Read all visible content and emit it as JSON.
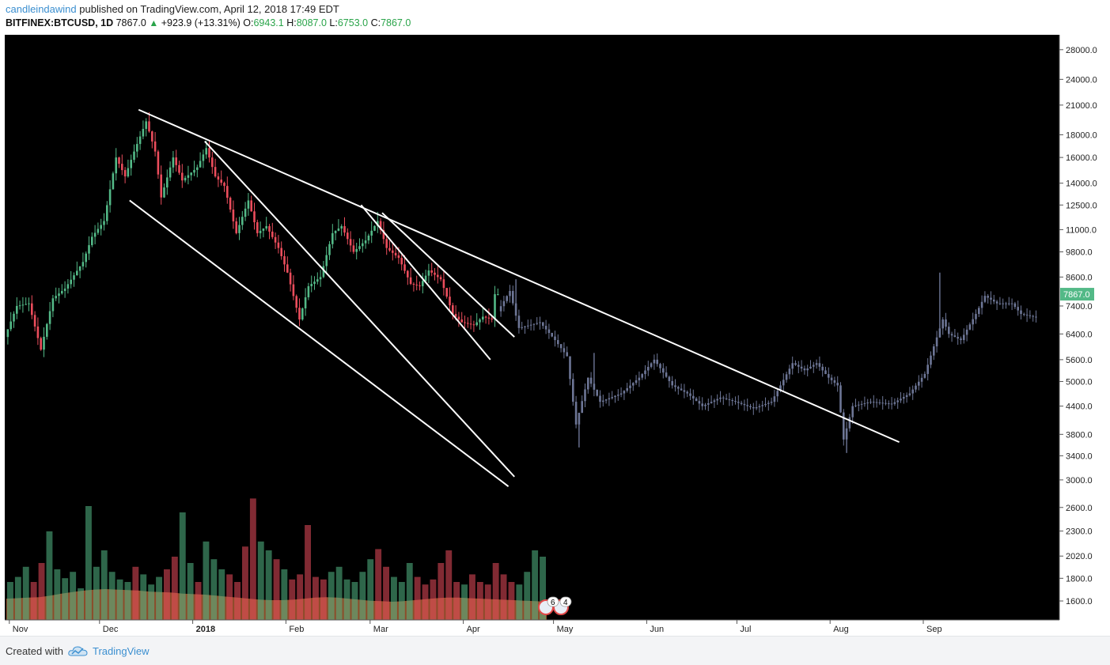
{
  "header": {
    "author": "candleindawind",
    "published": "published on TradingView.com, April 12, 2018 17:49 EDT",
    "symbol": "BITFINEX:BTCUSD, 1D",
    "last": "7867.0",
    "change": "+923.9 (+13.31%)",
    "o_label": "O:",
    "o_value": "6943.1",
    "h_label": "H:",
    "h_value": "8087.0",
    "l_label": "L:",
    "l_value": "6753.0",
    "c_label": "C:",
    "c_value": "7867.0"
  },
  "footer": {
    "created": "Created with",
    "brand": "TradingView"
  },
  "colors": {
    "background": "#000000",
    "up": "#53b987",
    "down": "#eb4d5c",
    "projection": "#6d7696",
    "trendline": "#ffffff",
    "price_badge": "#53b987",
    "volume_ma": "#ff8a4c"
  },
  "chart_data": {
    "type": "candlestick",
    "symbol": "BITFINEX:BTCUSD",
    "interval": "1D",
    "y_scale": "log",
    "ylim": [
      1450,
      30000
    ],
    "price_ticks": [
      "28000.0",
      "24000.0",
      "21000.0",
      "18000.0",
      "16000.0",
      "14000.0",
      "12500.0",
      "11000.0",
      "9800.0",
      "8600.0",
      "7400.0",
      "6400.0",
      "5600.0",
      "5000.0",
      "4400.0",
      "3800.0",
      "3400.0",
      "3000.0",
      "2600.0",
      "2300.0",
      "2020.0",
      "1800.0",
      "1600.0"
    ],
    "time_ticks": [
      "Nov",
      "Dec",
      "2018",
      "Feb",
      "Mar",
      "Apr",
      "May",
      "Jun",
      "Jul",
      "Aug",
      "Sep"
    ],
    "last_price": "7867.0",
    "price_path": [
      [
        "2017-10-31",
        6300
      ],
      [
        "2017-11-04",
        7400
      ],
      [
        "2017-11-08",
        7500
      ],
      [
        "2017-11-12",
        5900
      ],
      [
        "2017-11-16",
        7700
      ],
      [
        "2017-11-20",
        8100
      ],
      [
        "2017-11-26",
        9300
      ],
      [
        "2017-11-29",
        10600
      ],
      [
        "2017-12-03",
        11500
      ],
      [
        "2017-12-07",
        16000
      ],
      [
        "2017-12-10",
        14500
      ],
      [
        "2017-12-13",
        16500
      ],
      [
        "2017-12-17",
        19300
      ],
      [
        "2017-12-20",
        16500
      ],
      [
        "2017-12-22",
        13000
      ],
      [
        "2017-12-26",
        16000
      ],
      [
        "2017-12-29",
        14200
      ],
      [
        "2018-01-03",
        15200
      ],
      [
        "2018-01-06",
        16800
      ],
      [
        "2018-01-09",
        14500
      ],
      [
        "2018-01-12",
        13800
      ],
      [
        "2018-01-16",
        10800
      ],
      [
        "2018-01-20",
        12800
      ],
      [
        "2018-01-23",
        10800
      ],
      [
        "2018-01-26",
        11200
      ],
      [
        "2018-01-30",
        10000
      ],
      [
        "2018-02-02",
        8800
      ],
      [
        "2018-02-06",
        6900
      ],
      [
        "2018-02-09",
        8200
      ],
      [
        "2018-02-13",
        8600
      ],
      [
        "2018-02-17",
        10800
      ],
      [
        "2018-02-20",
        11200
      ],
      [
        "2018-02-24",
        9800
      ],
      [
        "2018-02-28",
        10400
      ],
      [
        "2018-03-04",
        11500
      ],
      [
        "2018-03-07",
        10000
      ],
      [
        "2018-03-11",
        9500
      ],
      [
        "2018-03-15",
        8300
      ],
      [
        "2018-03-18",
        8200
      ],
      [
        "2018-03-21",
        8900
      ],
      [
        "2018-03-25",
        8500
      ],
      [
        "2018-03-29",
        7100
      ],
      [
        "2018-04-01",
        6800
      ],
      [
        "2018-04-05",
        6700
      ],
      [
        "2018-04-08",
        7000
      ],
      [
        "2018-04-11",
        6900
      ],
      [
        "2018-04-12",
        7867
      ]
    ],
    "projection_path": [
      [
        "2018-04-13",
        7200
      ],
      [
        "2018-04-17",
        8000
      ],
      [
        "2018-04-20",
        6600
      ],
      [
        "2018-04-27",
        6800
      ],
      [
        "2018-05-02",
        6200
      ],
      [
        "2018-05-06",
        5700
      ],
      [
        "2018-05-09",
        4000
      ],
      [
        "2018-05-13",
        5100
      ],
      [
        "2018-05-17",
        4500
      ],
      [
        "2018-05-24",
        4700
      ],
      [
        "2018-05-30",
        5100
      ],
      [
        "2018-06-04",
        5600
      ],
      [
        "2018-06-10",
        4900
      ],
      [
        "2018-06-15",
        4700
      ],
      [
        "2018-06-20",
        4400
      ],
      [
        "2018-06-26",
        4600
      ],
      [
        "2018-07-01",
        4500
      ],
      [
        "2018-07-07",
        4350
      ],
      [
        "2018-07-13",
        4500
      ],
      [
        "2018-07-16",
        4900
      ],
      [
        "2018-07-20",
        5500
      ],
      [
        "2018-07-24",
        5300
      ],
      [
        "2018-07-28",
        5500
      ],
      [
        "2018-08-01",
        5100
      ],
      [
        "2018-08-04",
        4900
      ],
      [
        "2018-08-06",
        3700
      ],
      [
        "2018-08-09",
        4400
      ],
      [
        "2018-08-15",
        4500
      ],
      [
        "2018-08-22",
        4450
      ],
      [
        "2018-08-28",
        4700
      ],
      [
        "2018-09-02",
        5200
      ],
      [
        "2018-09-05",
        6000
      ],
      [
        "2018-09-08",
        6900
      ],
      [
        "2018-09-10",
        6400
      ],
      [
        "2018-09-14",
        6200
      ],
      [
        "2018-09-19",
        7100
      ],
      [
        "2018-09-22",
        7800
      ],
      [
        "2018-09-26",
        7500
      ],
      [
        "2018-10-01",
        7500
      ],
      [
        "2018-10-04",
        7100
      ],
      [
        "2018-10-08",
        7000
      ]
    ],
    "projection_spikes": [
      [
        "2018-04-18",
        8500
      ],
      [
        "2018-05-09",
        3550
      ],
      [
        "2018-05-14",
        5800
      ],
      [
        "2018-08-06",
        3450
      ],
      [
        "2018-09-06",
        8800
      ]
    ],
    "trendlines": [
      {
        "from": [
          "2017-12-14",
          20500
        ],
        "to": [
          "2018-08-24",
          3650
        ]
      },
      {
        "from": [
          "2018-01-05",
          17400
        ],
        "to": [
          "2018-04-18",
          3050
        ]
      },
      {
        "from": [
          "2017-12-11",
          12800
        ],
        "to": [
          "2018-04-16",
          2900
        ]
      },
      {
        "from": [
          "2018-02-26",
          12500
        ],
        "to": [
          "2018-04-10",
          5600
        ]
      },
      {
        "from": [
          "2018-03-05",
          12000
        ],
        "to": [
          "2018-04-18",
          6300
        ]
      }
    ],
    "volume": {
      "shown_as": "bars with moving-average area",
      "relative": [
        0.3,
        0.34,
        0.42,
        0.3,
        0.45,
        0.7,
        0.4,
        0.33,
        0.38,
        0.25,
        0.9,
        0.42,
        0.55,
        0.38,
        0.32,
        0.3,
        0.42,
        0.36,
        0.28,
        0.34,
        0.4,
        0.5,
        0.85,
        0.45,
        0.3,
        0.62,
        0.48,
        0.4,
        0.36,
        0.3,
        0.58,
        0.96,
        0.62,
        0.55,
        0.48,
        0.4,
        0.32,
        0.36,
        0.75,
        0.34,
        0.32,
        0.38,
        0.42,
        0.32,
        0.3,
        0.38,
        0.48,
        0.56,
        0.42,
        0.34,
        0.3,
        0.45,
        0.34,
        0.28,
        0.32,
        0.45,
        0.55,
        0.3,
        0.28,
        0.36,
        0.3,
        0.28,
        0.45,
        0.36,
        0.3,
        0.28,
        0.38,
        0.55,
        0.5
      ],
      "ma_relative": [
        0.42,
        0.43,
        0.44,
        0.45,
        0.48,
        0.52,
        0.55,
        0.58,
        0.6,
        0.61,
        0.6,
        0.59,
        0.58,
        0.56,
        0.55,
        0.54,
        0.52,
        0.51,
        0.5,
        0.48,
        0.46,
        0.44,
        0.42,
        0.4,
        0.39,
        0.39,
        0.4,
        0.42,
        0.44,
        0.45,
        0.44,
        0.42,
        0.4,
        0.38,
        0.37,
        0.36,
        0.37,
        0.39,
        0.41,
        0.43,
        0.44,
        0.44,
        0.43,
        0.42,
        0.41,
        0.4,
        0.39,
        0.38,
        0.37,
        0.36
      ]
    }
  },
  "badges": {
    "events": "6",
    "alerts": "4"
  }
}
